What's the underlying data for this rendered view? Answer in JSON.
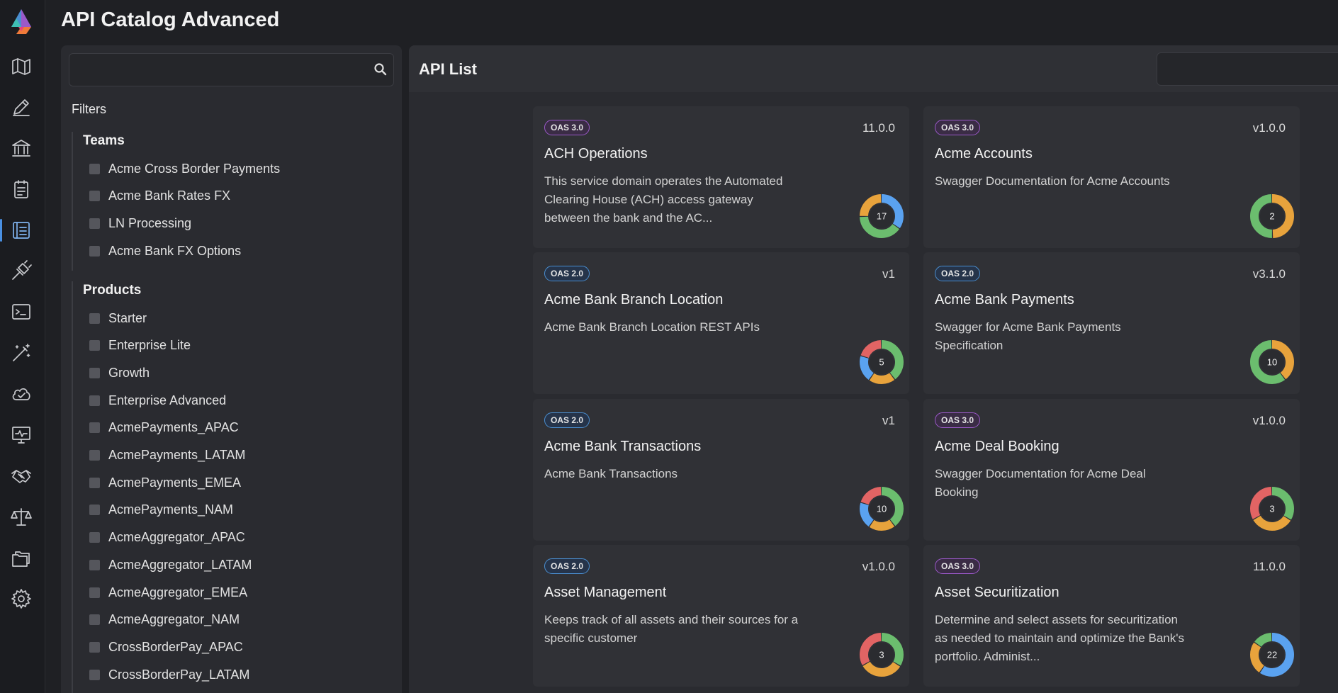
{
  "app": {
    "title": "API Catalog Advanced"
  },
  "colors": {
    "accent": "#4a90e2",
    "oas3": "#9b59c9",
    "oas2": "#4a8ed0",
    "donut_green": "#6bbd6e",
    "donut_orange": "#e8a33c",
    "donut_blue": "#5aa2f0",
    "donut_red": "#e26464"
  },
  "rail": {
    "items": [
      {
        "icon": "map-icon"
      },
      {
        "icon": "pencil-icon"
      },
      {
        "icon": "bank-icon"
      },
      {
        "icon": "clipboard-icon"
      },
      {
        "icon": "catalog-list-icon",
        "active": true
      },
      {
        "icon": "plug-icon"
      },
      {
        "icon": "terminal-icon"
      },
      {
        "icon": "magic-wand-icon"
      },
      {
        "icon": "cloud-check-icon"
      },
      {
        "icon": "monitor-pulse-icon"
      },
      {
        "icon": "handshake-icon"
      },
      {
        "icon": "scales-icon"
      },
      {
        "icon": "folders-icon"
      },
      {
        "icon": "gear-icon"
      }
    ]
  },
  "filters": {
    "search_placeholder": "",
    "label": "Filters",
    "teams": {
      "title": "Teams",
      "options": [
        "Acme Cross Border Payments",
        "Acme Bank Rates FX",
        "LN Processing",
        "Acme Bank FX Options"
      ]
    },
    "products": {
      "title": "Products",
      "options": [
        "Starter",
        "Enterprise Lite",
        "Growth",
        "Enterprise Advanced",
        "AcmePayments_APAC",
        "AcmePayments_LATAM",
        "AcmePayments_EMEA",
        "AcmePayments_NAM",
        "AcmeAggregator_APAC",
        "AcmeAggregator_LATAM",
        "AcmeAggregator_EMEA",
        "AcmeAggregator_NAM",
        "CrossBorderPay_APAC",
        "CrossBorderPay_LATAM"
      ]
    }
  },
  "list": {
    "title": "API List",
    "search_placeholder": "",
    "cards": [
      {
        "badge": "OAS 3.0",
        "version": "11.0.0",
        "name": "ACH Operations",
        "description": "This service domain operates the Automated Clearing House (ACH) access gateway between the bank and the AC...",
        "count": "17",
        "segments": [
          {
            "color": "#5aa2f0",
            "fraction": 0.35
          },
          {
            "color": "#6bbd6e",
            "fraction": 0.4
          },
          {
            "color": "#e8a33c",
            "fraction": 0.25
          }
        ]
      },
      {
        "badge": "OAS 3.0",
        "version": "v1.0.0",
        "name": "Acme Accounts",
        "description": "Swagger Documentation for Acme Accounts",
        "count": "2",
        "segments": [
          {
            "color": "#e8a33c",
            "fraction": 0.5
          },
          {
            "color": "#6bbd6e",
            "fraction": 0.5
          }
        ]
      },
      {
        "badge": "OAS 2.0",
        "version": "v1",
        "name": "Acme Bank Branch Location",
        "description": "Acme Bank Branch Location REST APIs",
        "count": "5",
        "segments": [
          {
            "color": "#6bbd6e",
            "fraction": 0.4
          },
          {
            "color": "#e8a33c",
            "fraction": 0.2
          },
          {
            "color": "#5aa2f0",
            "fraction": 0.2
          },
          {
            "color": "#e26464",
            "fraction": 0.2
          }
        ]
      },
      {
        "badge": "OAS 2.0",
        "version": "v3.1.0",
        "name": "Acme Bank Payments",
        "description": "Swagger for Acme Bank Payments Specification",
        "count": "10",
        "segments": [
          {
            "color": "#e8a33c",
            "fraction": 0.4
          },
          {
            "color": "#6bbd6e",
            "fraction": 0.6
          }
        ]
      },
      {
        "badge": "OAS 2.0",
        "version": "v1",
        "name": "Acme Bank Transactions",
        "description": "Acme Bank Transactions",
        "count": "10",
        "segments": [
          {
            "color": "#6bbd6e",
            "fraction": 0.4
          },
          {
            "color": "#e8a33c",
            "fraction": 0.2
          },
          {
            "color": "#5aa2f0",
            "fraction": 0.2
          },
          {
            "color": "#e26464",
            "fraction": 0.2
          }
        ]
      },
      {
        "badge": "OAS 3.0",
        "version": "v1.0.0",
        "name": "Acme Deal Booking",
        "description": "Swagger Documentation for Acme Deal Booking",
        "count": "3",
        "segments": [
          {
            "color": "#6bbd6e",
            "fraction": 0.34
          },
          {
            "color": "#e8a33c",
            "fraction": 0.33
          },
          {
            "color": "#e26464",
            "fraction": 0.33
          }
        ]
      },
      {
        "badge": "OAS 2.0",
        "version": "v1.0.0",
        "name": "Asset Management",
        "description": "Keeps track of all assets and their sources for a specific customer",
        "count": "3",
        "segments": [
          {
            "color": "#6bbd6e",
            "fraction": 0.34
          },
          {
            "color": "#e8a33c",
            "fraction": 0.33
          },
          {
            "color": "#e26464",
            "fraction": 0.33
          }
        ]
      },
      {
        "badge": "OAS 3.0",
        "version": "11.0.0",
        "name": "Asset Securitization",
        "description": "Determine and select assets for securitization as needed to maintain and optimize the Bank's portfolio. Administ...",
        "count": "22",
        "segments": [
          {
            "color": "#5aa2f0",
            "fraction": 0.6
          },
          {
            "color": "#e8a33c",
            "fraction": 0.25
          },
          {
            "color": "#6bbd6e",
            "fraction": 0.15
          }
        ]
      }
    ]
  }
}
